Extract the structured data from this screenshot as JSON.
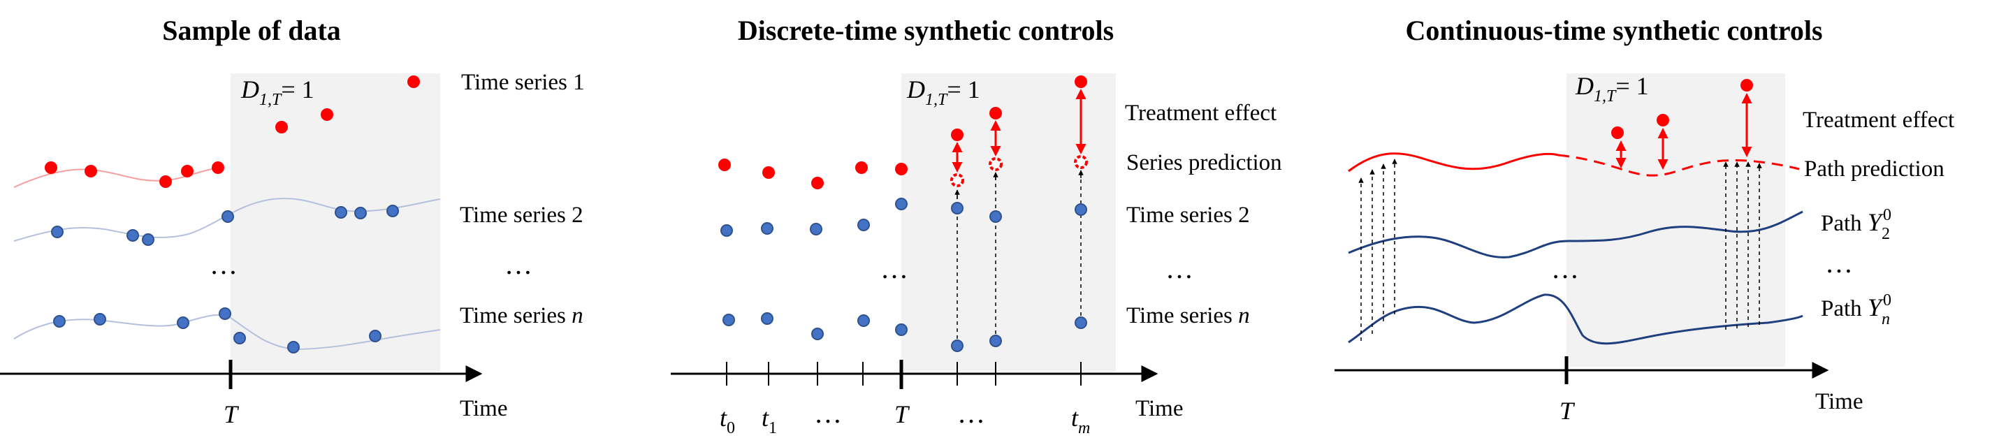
{
  "panel1": {
    "title": "Sample of data",
    "treatment_var": "D",
    "treatment_sub": "1,T",
    "treatment_eq": "= 1",
    "series1_label": "Time series 1",
    "series2_label": "Time series 2",
    "seriesn_label_prefix": "Time series ",
    "seriesn_label_var": "n",
    "ellipsis_left": "…",
    "ellipsis_right": "…",
    "T_label": "T",
    "axis_label": "Time"
  },
  "panel2": {
    "title": "Discrete-time synthetic controls",
    "treatment_var": "D",
    "treatment_sub": "1,T",
    "treatment_eq": "= 1",
    "treatment_effect_label": "Treatment effect",
    "series_prediction_label": "Series prediction",
    "series2_label": "Time series 2",
    "seriesn_label_prefix": "Time series ",
    "seriesn_label_var": "n",
    "ellipsis_left": "…",
    "ellipsis_right": "…",
    "ellipsis_axis": "…",
    "ellipsis_axis_after": "…",
    "t0_var": "t",
    "t0_sub": "0",
    "t1_var": "t",
    "t1_sub": "1",
    "T_label": "T",
    "tm_var": "t",
    "tm_sub": "m",
    "axis_label": "Time"
  },
  "panel3": {
    "title": "Continuous-time synthetic controls",
    "treatment_var": "D",
    "treatment_sub": "1,T",
    "treatment_eq": "= 1",
    "treatment_effect_label": "Treatment effect",
    "path_prediction_label": "Path prediction",
    "path2_prefix": "Path ",
    "path2_var": "Y",
    "path2_sup": "0",
    "path2_sub": "2",
    "pathn_prefix": "Path ",
    "pathn_var": "Y",
    "pathn_sup": "0",
    "pathn_sub": "n",
    "ellipsis_left": "…",
    "ellipsis_right": "…",
    "T_label": "T",
    "axis_label": "Time"
  },
  "colors": {
    "treated": "#ff0000",
    "control": "#4472c4",
    "control_edge": "#2f528f",
    "control_line": "#b4c0dc",
    "path": "#1f3f7f",
    "treated_line": "#f4a0a0",
    "shade": "#f2f2f2"
  }
}
